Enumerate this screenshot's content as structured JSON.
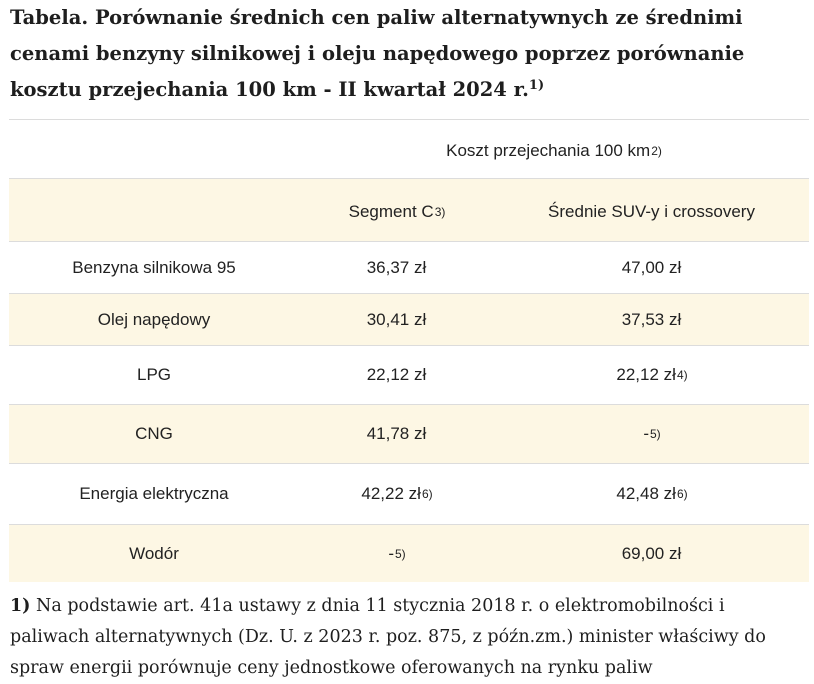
{
  "title": {
    "text": "Tabela. Porównanie średnich cen paliw alternatywnych ze średnimi cenami benzyny silnikowej i oleju napędowego poprzez porównanie kosztu przejechania 100 km - II kwartał 2024 r.",
    "sup": "1)"
  },
  "table": {
    "group_header": {
      "text": "Koszt przejechania 100 km",
      "sup": "2)"
    },
    "columns": [
      {
        "text": "Segment C",
        "sup": "3)"
      },
      {
        "text": "Średnie SUV-y i crossovery",
        "sup": ""
      }
    ],
    "rows": [
      {
        "fuel": "Benzyna silnikowa 95",
        "segment_c": "36,37 zł",
        "segment_c_sup": "",
        "suv": "47,00 zł",
        "suv_sup": ""
      },
      {
        "fuel": "Olej napędowy",
        "segment_c": "30,41 zł",
        "segment_c_sup": "",
        "suv": "37,53 zł",
        "suv_sup": ""
      },
      {
        "fuel": "LPG",
        "segment_c": "22,12 zł",
        "segment_c_sup": "",
        "suv": "22,12 zł",
        "suv_sup": "4)"
      },
      {
        "fuel": "CNG",
        "segment_c": "41,78 zł",
        "segment_c_sup": "",
        "suv": "-",
        "suv_sup": "5)"
      },
      {
        "fuel": "Energia elektryczna",
        "segment_c": "42,22 zł",
        "segment_c_sup": "6)",
        "suv": "42,48 zł",
        "suv_sup": "6)"
      },
      {
        "fuel": "Wodór",
        "segment_c": "-",
        "segment_c_sup": "5)",
        "suv": "69,00 zł",
        "suv_sup": ""
      }
    ]
  },
  "footnote": {
    "marker": "1)",
    "text": " Na podstawie art. 41a ustawy z dnia 11 stycznia 2018 r. o elektromobilności i paliwach alternatywnych (Dz. U. z 2023 r. poz. 875, z późn.zm.) minister właściwy do spraw energii porównuje ceny jednostkowe oferowanych na rynku paliw"
  }
}
